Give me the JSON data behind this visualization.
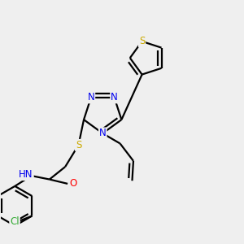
{
  "bg_color": "#efefef",
  "atom_colors": {
    "C": "#000000",
    "N": "#0000ee",
    "S": "#ccaa00",
    "O": "#ff0000",
    "Cl": "#33aa33",
    "H": "#666666"
  },
  "bond_color": "#000000",
  "bond_width": 1.6,
  "font_size_atom": 8.5
}
